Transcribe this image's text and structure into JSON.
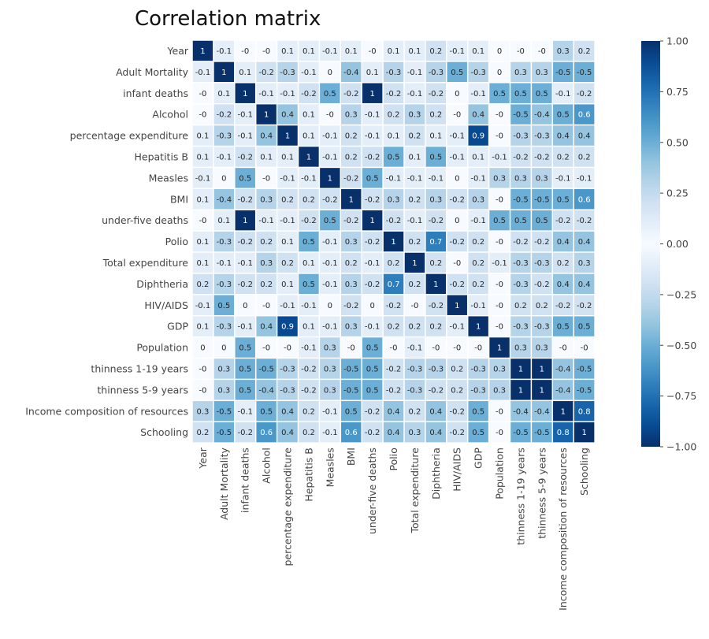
{
  "chart_data": {
    "type": "heatmap",
    "title": "Correlation matrix",
    "labels": [
      "Year",
      "Adult Mortality",
      "infant deaths",
      "Alcohol",
      "percentage expenditure",
      "Hepatitis B",
      "Measles",
      "BMI",
      "under-five deaths",
      "Polio",
      "Total expenditure",
      "Diphtheria",
      "HIV/AIDS",
      "GDP",
      "Population",
      "thinness  1-19 years",
      "thinness 5-9 years",
      "Income composition of resources",
      "Schooling"
    ],
    "cell_labels": [
      [
        "1",
        "-0.1",
        "-0",
        "-0",
        "0.1",
        "0.1",
        "-0.1",
        "0.1",
        "-0",
        "0.1",
        "0.1",
        "0.2",
        "-0.1",
        "0.1",
        "0",
        "-0",
        "-0",
        "0.3",
        "0.2"
      ],
      [
        "-0.1",
        "1",
        "0.1",
        "-0.2",
        "-0.3",
        "-0.1",
        "0",
        "-0.4",
        "0.1",
        "-0.3",
        "-0.1",
        "-0.3",
        "0.5",
        "-0.3",
        "0",
        "0.3",
        "0.3",
        "-0.5",
        "-0.5"
      ],
      [
        "-0",
        "0.1",
        "1",
        "-0.1",
        "-0.1",
        "-0.2",
        "0.5",
        "-0.2",
        "1",
        "-0.2",
        "-0.1",
        "-0.2",
        "0",
        "-0.1",
        "0.5",
        "0.5",
        "0.5",
        "-0.1",
        "-0.2"
      ],
      [
        "-0",
        "-0.2",
        "-0.1",
        "1",
        "0.4",
        "0.1",
        "-0",
        "0.3",
        "-0.1",
        "0.2",
        "0.3",
        "0.2",
        "-0",
        "0.4",
        "-0",
        "-0.5",
        "-0.4",
        "0.5",
        "0.6"
      ],
      [
        "0.1",
        "-0.3",
        "-0.1",
        "0.4",
        "1",
        "0.1",
        "-0.1",
        "0.2",
        "-0.1",
        "0.1",
        "0.2",
        "0.1",
        "-0.1",
        "0.9",
        "-0",
        "-0.3",
        "-0.3",
        "0.4",
        "0.4"
      ],
      [
        "0.1",
        "-0.1",
        "-0.2",
        "0.1",
        "0.1",
        "1",
        "-0.1",
        "0.2",
        "-0.2",
        "0.5",
        "0.1",
        "0.5",
        "-0.1",
        "0.1",
        "-0.1",
        "-0.2",
        "-0.2",
        "0.2",
        "0.2"
      ],
      [
        "-0.1",
        "0",
        "0.5",
        "-0",
        "-0.1",
        "-0.1",
        "1",
        "-0.2",
        "0.5",
        "-0.1",
        "-0.1",
        "-0.1",
        "0",
        "-0.1",
        "0.3",
        "0.3",
        "0.3",
        "-0.1",
        "-0.1"
      ],
      [
        "0.1",
        "-0.4",
        "-0.2",
        "0.3",
        "0.2",
        "0.2",
        "-0.2",
        "1",
        "-0.2",
        "0.3",
        "0.2",
        "0.3",
        "-0.2",
        "0.3",
        "-0",
        "-0.5",
        "-0.5",
        "0.5",
        "0.6"
      ],
      [
        "-0",
        "0.1",
        "1",
        "-0.1",
        "-0.1",
        "-0.2",
        "0.5",
        "-0.2",
        "1",
        "-0.2",
        "-0.1",
        "-0.2",
        "0",
        "-0.1",
        "0.5",
        "0.5",
        "0.5",
        "-0.2",
        "-0.2"
      ],
      [
        "0.1",
        "-0.3",
        "-0.2",
        "0.2",
        "0.1",
        "0.5",
        "-0.1",
        "0.3",
        "-0.2",
        "1",
        "0.2",
        "0.7",
        "-0.2",
        "0.2",
        "-0",
        "-0.2",
        "-0.2",
        "0.4",
        "0.4"
      ],
      [
        "0.1",
        "-0.1",
        "-0.1",
        "0.3",
        "0.2",
        "0.1",
        "-0.1",
        "0.2",
        "-0.1",
        "0.2",
        "1",
        "0.2",
        "-0",
        "0.2",
        "-0.1",
        "-0.3",
        "-0.3",
        "0.2",
        "0.3"
      ],
      [
        "0.2",
        "-0.3",
        "-0.2",
        "0.2",
        "0.1",
        "0.5",
        "-0.1",
        "0.3",
        "-0.2",
        "0.7",
        "0.2",
        "1",
        "-0.2",
        "0.2",
        "-0",
        "-0.3",
        "-0.2",
        "0.4",
        "0.4"
      ],
      [
        "-0.1",
        "0.5",
        "0",
        "-0",
        "-0.1",
        "-0.1",
        "0",
        "-0.2",
        "0",
        "-0.2",
        "-0",
        "-0.2",
        "1",
        "-0.1",
        "-0",
        "0.2",
        "0.2",
        "-0.2",
        "-0.2"
      ],
      [
        "0.1",
        "-0.3",
        "-0.1",
        "0.4",
        "0.9",
        "0.1",
        "-0.1",
        "0.3",
        "-0.1",
        "0.2",
        "0.2",
        "0.2",
        "-0.1",
        "1",
        "-0",
        "-0.3",
        "-0.3",
        "0.5",
        "0.5"
      ],
      [
        "0",
        "0",
        "0.5",
        "-0",
        "-0",
        "-0.1",
        "0.3",
        "-0",
        "0.5",
        "-0",
        "-0.1",
        "-0",
        "-0",
        "-0",
        "1",
        "0.3",
        "0.3",
        "-0",
        "-0"
      ],
      [
        "-0",
        "0.3",
        "0.5",
        "-0.5",
        "-0.3",
        "-0.2",
        "0.3",
        "-0.5",
        "0.5",
        "-0.2",
        "-0.3",
        "-0.3",
        "0.2",
        "-0.3",
        "0.3",
        "1",
        "1",
        "-0.4",
        "-0.5"
      ],
      [
        "-0",
        "0.3",
        "0.5",
        "-0.4",
        "-0.3",
        "-0.2",
        "0.3",
        "-0.5",
        "0.5",
        "-0.2",
        "-0.3",
        "-0.2",
        "0.2",
        "-0.3",
        "0.3",
        "1",
        "1",
        "-0.4",
        "-0.5"
      ],
      [
        "0.3",
        "-0.5",
        "-0.1",
        "0.5",
        "0.4",
        "0.2",
        "-0.1",
        "0.5",
        "-0.2",
        "0.4",
        "0.2",
        "0.4",
        "-0.2",
        "0.5",
        "-0",
        "-0.4",
        "-0.4",
        "1",
        "0.8"
      ],
      [
        "0.2",
        "-0.5",
        "-0.2",
        "0.6",
        "0.4",
        "0.2",
        "-0.1",
        "0.6",
        "-0.2",
        "0.4",
        "0.3",
        "0.4",
        "-0.2",
        "0.5",
        "-0",
        "-0.5",
        "-0.5",
        "0.8",
        "1"
      ]
    ],
    "value_range": [
      -1.0,
      1.0
    ],
    "colormap": "Blues",
    "colorbar_ticks": [
      "1.00",
      "0.75",
      "0.50",
      "0.25",
      "0.00",
      "−0.25",
      "−0.50",
      "−0.75",
      "−1.00"
    ],
    "colorbar_tick_values": [
      1.0,
      0.75,
      0.5,
      0.25,
      0.0,
      -0.25,
      -0.5,
      -0.75,
      -1.0
    ],
    "grid": false,
    "legend": "colorbar-right"
  }
}
